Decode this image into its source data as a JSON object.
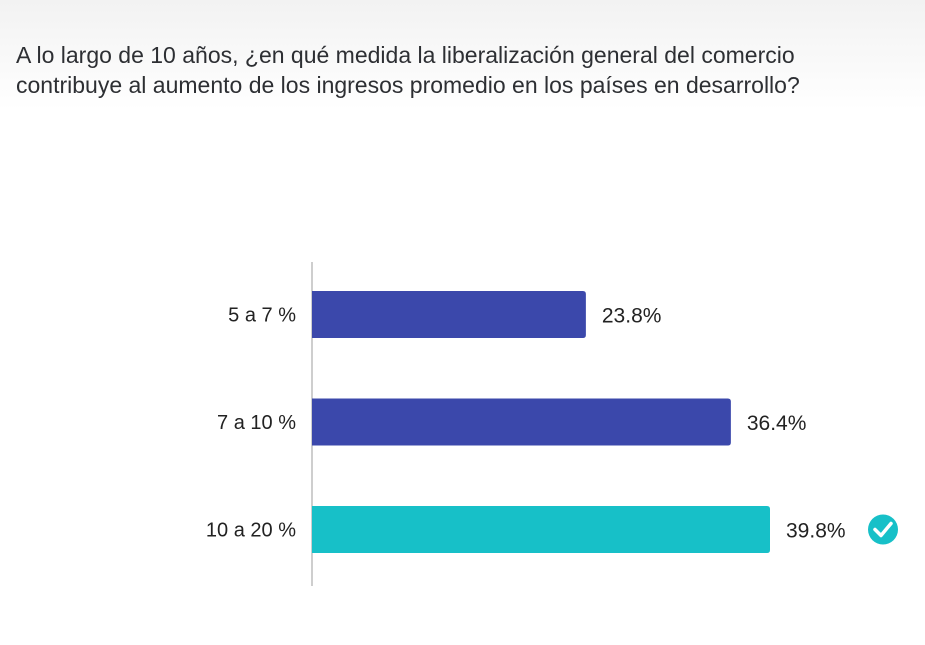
{
  "question": "A lo largo de 10 años, ¿en qué medida la liberalización general del comercio contribuye al aumento de los ingresos promedio en los países en desarrollo?",
  "colors": {
    "bar_default": "#3b48ab",
    "bar_correct": "#17c0c8",
    "check_icon": "#17c0c8",
    "axis": "#bdbdbd"
  },
  "chart_data": {
    "type": "bar",
    "orientation": "horizontal",
    "title": "A lo largo de 10 años, ¿en qué medida la liberalización general del comercio contribuye al aumento de los ingresos promedio en los países en desarrollo?",
    "categories": [
      "5 a 7 %",
      "7 a 10 %",
      "10 a 20 %"
    ],
    "values": [
      23.8,
      36.4,
      39.8
    ],
    "value_labels": [
      "23.8%",
      "36.4%",
      "39.8%"
    ],
    "correct": [
      false,
      false,
      true
    ],
    "xlabel": "",
    "ylabel": "",
    "xlim": [
      0,
      39.8
    ],
    "grid": false
  }
}
